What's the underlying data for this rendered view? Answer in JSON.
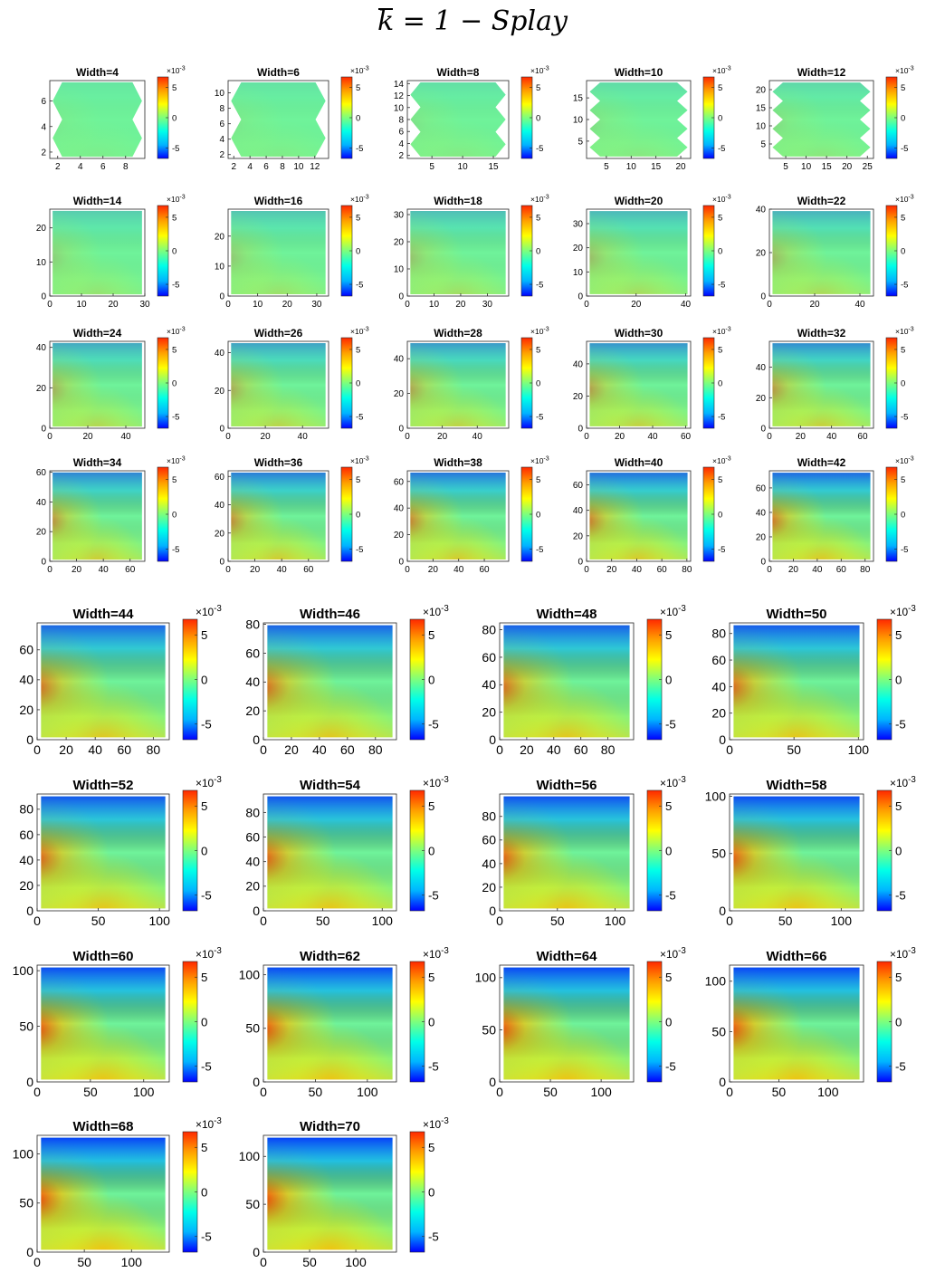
{
  "title": {
    "k": "k",
    "rest": " = 1  − Splay"
  },
  "colormap": [
    "#0000ff",
    "#00b4ff",
    "#00ffe8",
    "#7dff7d",
    "#ffff00",
    "#ff9f00",
    "#ff2800"
  ],
  "chart_data": [
    {
      "type": "heatmap",
      "title": "Width=4",
      "xticks": [
        2,
        4,
        6,
        8
      ],
      "yticks": [
        2,
        4,
        6
      ],
      "xlim": [
        1.3,
        9.7
      ],
      "ylim": [
        1.5,
        7.6
      ],
      "colorbar": {
        "ticks": [
          5,
          0,
          -5
        ],
        "exponent": "×10-3"
      },
      "intensity": 0.08,
      "shape": "zigzag"
    },
    {
      "type": "heatmap",
      "title": "Width=6",
      "xticks": [
        2,
        4,
        6,
        8,
        10,
        12
      ],
      "yticks": [
        2,
        4,
        6,
        8,
        10
      ],
      "xlim": [
        1.3,
        13.7
      ],
      "ylim": [
        1.5,
        11.6
      ],
      "colorbar": {
        "ticks": [
          5,
          0,
          -5
        ],
        "exponent": "×10-3"
      },
      "intensity": 0.1,
      "shape": "zigzag"
    },
    {
      "type": "heatmap",
      "title": "Width=8",
      "xticks": [
        5,
        10,
        15
      ],
      "yticks": [
        2,
        4,
        6,
        8,
        10,
        12,
        14
      ],
      "xlim": [
        1,
        17.5
      ],
      "ylim": [
        1.5,
        14.5
      ],
      "colorbar": {
        "ticks": [
          5,
          0,
          -5
        ],
        "exponent": "×10-3"
      },
      "intensity": 0.12,
      "shape": "zigzag"
    },
    {
      "type": "heatmap",
      "title": "Width=10",
      "xticks": [
        5,
        10,
        15,
        20
      ],
      "yticks": [
        5,
        10,
        15
      ],
      "xlim": [
        1,
        22
      ],
      "ylim": [
        1,
        19
      ],
      "colorbar": {
        "ticks": [
          5,
          0,
          -5
        ],
        "exponent": "×10-3"
      },
      "intensity": 0.14,
      "shape": "zigzag"
    },
    {
      "type": "heatmap",
      "title": "Width=12",
      "xticks": [
        5,
        10,
        15,
        20,
        25
      ],
      "yticks": [
        5,
        10,
        15,
        20
      ],
      "xlim": [
        1,
        26.5
      ],
      "ylim": [
        1,
        22.5
      ],
      "colorbar": {
        "ticks": [
          5,
          0,
          -5
        ],
        "exponent": "×10-3"
      },
      "intensity": 0.16,
      "shape": "zigzag"
    },
    {
      "type": "heatmap",
      "title": "Width=14",
      "xticks": [
        0,
        10,
        20,
        30
      ],
      "yticks": [
        0,
        10,
        20
      ],
      "xlim": [
        0,
        30
      ],
      "ylim": [
        0,
        25.5
      ],
      "colorbar": {
        "ticks": [
          5,
          0,
          -5
        ],
        "exponent": "×10-3"
      },
      "intensity": 0.22
    },
    {
      "type": "heatmap",
      "title": "Width=16",
      "xticks": [
        0,
        10,
        20,
        30
      ],
      "yticks": [
        0,
        10,
        20
      ],
      "xlim": [
        0,
        34
      ],
      "ylim": [
        0,
        29
      ],
      "colorbar": {
        "ticks": [
          5,
          0,
          -5
        ],
        "exponent": "×10-3"
      },
      "intensity": 0.26
    },
    {
      "type": "heatmap",
      "title": "Width=18",
      "xticks": [
        0,
        10,
        20,
        30
      ],
      "yticks": [
        0,
        10,
        20,
        30
      ],
      "xlim": [
        0,
        38
      ],
      "ylim": [
        0,
        32
      ],
      "colorbar": {
        "ticks": [
          5,
          0,
          -5
        ],
        "exponent": "×10-3"
      },
      "intensity": 0.3
    },
    {
      "type": "heatmap",
      "title": "Width=20",
      "xticks": [
        0,
        20,
        40
      ],
      "yticks": [
        0,
        10,
        20,
        30
      ],
      "xlim": [
        0,
        42
      ],
      "ylim": [
        0,
        36
      ],
      "colorbar": {
        "ticks": [
          5,
          0,
          -5
        ],
        "exponent": "×10-3"
      },
      "intensity": 0.34
    },
    {
      "type": "heatmap",
      "title": "Width=22",
      "xticks": [
        0,
        20,
        40
      ],
      "yticks": [
        0,
        20,
        40
      ],
      "xlim": [
        0,
        46
      ],
      "ylim": [
        0,
        40
      ],
      "colorbar": {
        "ticks": [
          5,
          0,
          -5
        ],
        "exponent": "×10-3"
      },
      "intensity": 0.37
    },
    {
      "type": "heatmap",
      "title": "Width=24",
      "xticks": [
        0,
        20,
        40
      ],
      "yticks": [
        0,
        20,
        40
      ],
      "xlim": [
        0,
        50
      ],
      "ylim": [
        0,
        43
      ],
      "colorbar": {
        "ticks": [
          5,
          0,
          -5
        ],
        "exponent": "×10-3"
      },
      "intensity": 0.42
    },
    {
      "type": "heatmap",
      "title": "Width=26",
      "xticks": [
        0,
        20,
        40
      ],
      "yticks": [
        0,
        20,
        40
      ],
      "xlim": [
        0,
        54
      ],
      "ylim": [
        0,
        46
      ],
      "colorbar": {
        "ticks": [
          5,
          0,
          -5
        ],
        "exponent": "×10-3"
      },
      "intensity": 0.46
    },
    {
      "type": "heatmap",
      "title": "Width=28",
      "xticks": [
        0,
        20,
        40
      ],
      "yticks": [
        0,
        20,
        40
      ],
      "xlim": [
        0,
        58
      ],
      "ylim": [
        0,
        50
      ],
      "colorbar": {
        "ticks": [
          5,
          0,
          -5
        ],
        "exponent": "×10-3"
      },
      "intensity": 0.5
    },
    {
      "type": "heatmap",
      "title": "Width=30",
      "xticks": [
        0,
        20,
        40,
        60
      ],
      "yticks": [
        0,
        20,
        40
      ],
      "xlim": [
        0,
        63
      ],
      "ylim": [
        0,
        54
      ],
      "colorbar": {
        "ticks": [
          5,
          0,
          -5
        ],
        "exponent": "×10-3"
      },
      "intensity": 0.54
    },
    {
      "type": "heatmap",
      "title": "Width=32",
      "xticks": [
        0,
        20,
        40,
        60
      ],
      "yticks": [
        0,
        20,
        40
      ],
      "xlim": [
        0,
        67
      ],
      "ylim": [
        0,
        57
      ],
      "colorbar": {
        "ticks": [
          5,
          0,
          -5
        ],
        "exponent": "×10-3"
      },
      "intensity": 0.58
    },
    {
      "type": "heatmap",
      "title": "Width=34",
      "xticks": [
        0,
        20,
        40,
        60
      ],
      "yticks": [
        0,
        20,
        40,
        60
      ],
      "xlim": [
        0,
        71
      ],
      "ylim": [
        0,
        61
      ],
      "colorbar": {
        "ticks": [
          5,
          0,
          -5
        ],
        "exponent": "×10-3"
      },
      "intensity": 0.62
    },
    {
      "type": "heatmap",
      "title": "Width=36",
      "xticks": [
        0,
        20,
        40,
        60
      ],
      "yticks": [
        0,
        20,
        40,
        60
      ],
      "xlim": [
        0,
        75
      ],
      "ylim": [
        0,
        64
      ],
      "colorbar": {
        "ticks": [
          5,
          0,
          -5
        ],
        "exponent": "×10-3"
      },
      "intensity": 0.66
    },
    {
      "type": "heatmap",
      "title": "Width=38",
      "xticks": [
        0,
        20,
        40,
        60
      ],
      "yticks": [
        0,
        20,
        40,
        60
      ],
      "xlim": [
        0,
        79
      ],
      "ylim": [
        0,
        68
      ],
      "colorbar": {
        "ticks": [
          5,
          0,
          -5
        ],
        "exponent": "×10-3"
      },
      "intensity": 0.7
    },
    {
      "type": "heatmap",
      "title": "Width=40",
      "xticks": [
        0,
        20,
        40,
        60,
        80
      ],
      "yticks": [
        0,
        20,
        40,
        60
      ],
      "xlim": [
        0,
        83
      ],
      "ylim": [
        0,
        71
      ],
      "colorbar": {
        "ticks": [
          5,
          0,
          -5
        ],
        "exponent": "×10-3"
      },
      "intensity": 0.74
    },
    {
      "type": "heatmap",
      "title": "Width=42",
      "xticks": [
        0,
        20,
        40,
        60,
        80
      ],
      "yticks": [
        0,
        20,
        40,
        60
      ],
      "xlim": [
        0,
        87
      ],
      "ylim": [
        0,
        74
      ],
      "colorbar": {
        "ticks": [
          5,
          0,
          -5
        ],
        "exponent": "×10-3"
      },
      "intensity": 0.78
    },
    {
      "type": "heatmap",
      "title": "Width=44",
      "xticks": [
        0,
        20,
        40,
        60,
        80
      ],
      "yticks": [
        0,
        20,
        40,
        60
      ],
      "xlim": [
        0,
        91
      ],
      "ylim": [
        0,
        78
      ],
      "colorbar": {
        "ticks": [
          5,
          0,
          -5
        ],
        "exponent": "×10-3"
      },
      "intensity": 0.8
    },
    {
      "type": "heatmap",
      "title": "Width=46",
      "xticks": [
        0,
        20,
        40,
        60,
        80
      ],
      "yticks": [
        0,
        20,
        40,
        60,
        80
      ],
      "xlim": [
        0,
        95
      ],
      "ylim": [
        0,
        81
      ],
      "colorbar": {
        "ticks": [
          5,
          0,
          -5
        ],
        "exponent": "×10-3"
      },
      "intensity": 0.82
    },
    {
      "type": "heatmap",
      "title": "Width=48",
      "xticks": [
        0,
        20,
        40,
        60,
        80
      ],
      "yticks": [
        0,
        20,
        40,
        60,
        80
      ],
      "xlim": [
        0,
        99
      ],
      "ylim": [
        0,
        85
      ],
      "colorbar": {
        "ticks": [
          5,
          0,
          -5
        ],
        "exponent": "×10-3"
      },
      "intensity": 0.84
    },
    {
      "type": "heatmap",
      "title": "Width=50",
      "xticks": [
        0,
        50,
        100
      ],
      "yticks": [
        0,
        20,
        40,
        60,
        80
      ],
      "xlim": [
        0,
        104
      ],
      "ylim": [
        0,
        88
      ],
      "colorbar": {
        "ticks": [
          5,
          0,
          -5
        ],
        "exponent": "×10-3"
      },
      "intensity": 0.86
    },
    {
      "type": "heatmap",
      "title": "Width=52",
      "xticks": [
        0,
        50,
        100
      ],
      "yticks": [
        0,
        20,
        40,
        60,
        80
      ],
      "xlim": [
        0,
        108
      ],
      "ylim": [
        0,
        92
      ],
      "colorbar": {
        "ticks": [
          5,
          0,
          -5
        ],
        "exponent": "×10-3"
      },
      "intensity": 0.88
    },
    {
      "type": "heatmap",
      "title": "Width=54",
      "xticks": [
        0,
        50,
        100
      ],
      "yticks": [
        0,
        20,
        40,
        60,
        80
      ],
      "xlim": [
        0,
        112
      ],
      "ylim": [
        0,
        95
      ],
      "colorbar": {
        "ticks": [
          5,
          0,
          -5
        ],
        "exponent": "×10-3"
      },
      "intensity": 0.9
    },
    {
      "type": "heatmap",
      "title": "Width=56",
      "xticks": [
        0,
        50,
        100
      ],
      "yticks": [
        0,
        20,
        40,
        60,
        80
      ],
      "xlim": [
        0,
        116
      ],
      "ylim": [
        0,
        99
      ],
      "colorbar": {
        "ticks": [
          5,
          0,
          -5
        ],
        "exponent": "×10-3"
      },
      "intensity": 0.92
    },
    {
      "type": "heatmap",
      "title": "Width=58",
      "xticks": [
        0,
        50,
        100
      ],
      "yticks": [
        0,
        50,
        100
      ],
      "xlim": [
        0,
        120
      ],
      "ylim": [
        0,
        102
      ],
      "colorbar": {
        "ticks": [
          5,
          0,
          -5
        ],
        "exponent": "×10-3"
      },
      "intensity": 0.94
    },
    {
      "type": "heatmap",
      "title": "Width=60",
      "xticks": [
        0,
        50,
        100
      ],
      "yticks": [
        0,
        50,
        100
      ],
      "xlim": [
        0,
        124
      ],
      "ylim": [
        0,
        105
      ],
      "colorbar": {
        "ticks": [
          5,
          0,
          -5
        ],
        "exponent": "×10-3"
      },
      "intensity": 0.95
    },
    {
      "type": "heatmap",
      "title": "Width=62",
      "xticks": [
        0,
        50,
        100
      ],
      "yticks": [
        0,
        50,
        100
      ],
      "xlim": [
        0,
        128
      ],
      "ylim": [
        0,
        109
      ],
      "colorbar": {
        "ticks": [
          5,
          0,
          -5
        ],
        "exponent": "×10-3"
      },
      "intensity": 0.96
    },
    {
      "type": "heatmap",
      "title": "Width=64",
      "xticks": [
        0,
        50,
        100
      ],
      "yticks": [
        0,
        50,
        100
      ],
      "xlim": [
        0,
        132
      ],
      "ylim": [
        0,
        112
      ],
      "colorbar": {
        "ticks": [
          5,
          0,
          -5
        ],
        "exponent": "×10-3"
      },
      "intensity": 0.97
    },
    {
      "type": "heatmap",
      "title": "Width=66",
      "xticks": [
        0,
        50,
        100
      ],
      "yticks": [
        0,
        50,
        100
      ],
      "xlim": [
        0,
        136
      ],
      "ylim": [
        0,
        116
      ],
      "colorbar": {
        "ticks": [
          5,
          0,
          -5
        ],
        "exponent": "×10-3"
      },
      "intensity": 0.98
    },
    {
      "type": "heatmap",
      "title": "Width=68",
      "xticks": [
        0,
        50,
        100
      ],
      "yticks": [
        0,
        50,
        100
      ],
      "xlim": [
        0,
        140
      ],
      "ylim": [
        0,
        119
      ],
      "colorbar": {
        "ticks": [
          5,
          0,
          -5
        ],
        "exponent": "×10-3"
      },
      "intensity": 0.99
    },
    {
      "type": "heatmap",
      "title": "Width=70",
      "xticks": [
        0,
        50,
        100
      ],
      "yticks": [
        0,
        50,
        100
      ],
      "xlim": [
        0,
        144
      ],
      "ylim": [
        0,
        122
      ],
      "colorbar": {
        "ticks": [
          5,
          0,
          -5
        ],
        "exponent": "×10-3"
      },
      "intensity": 1.0
    }
  ]
}
